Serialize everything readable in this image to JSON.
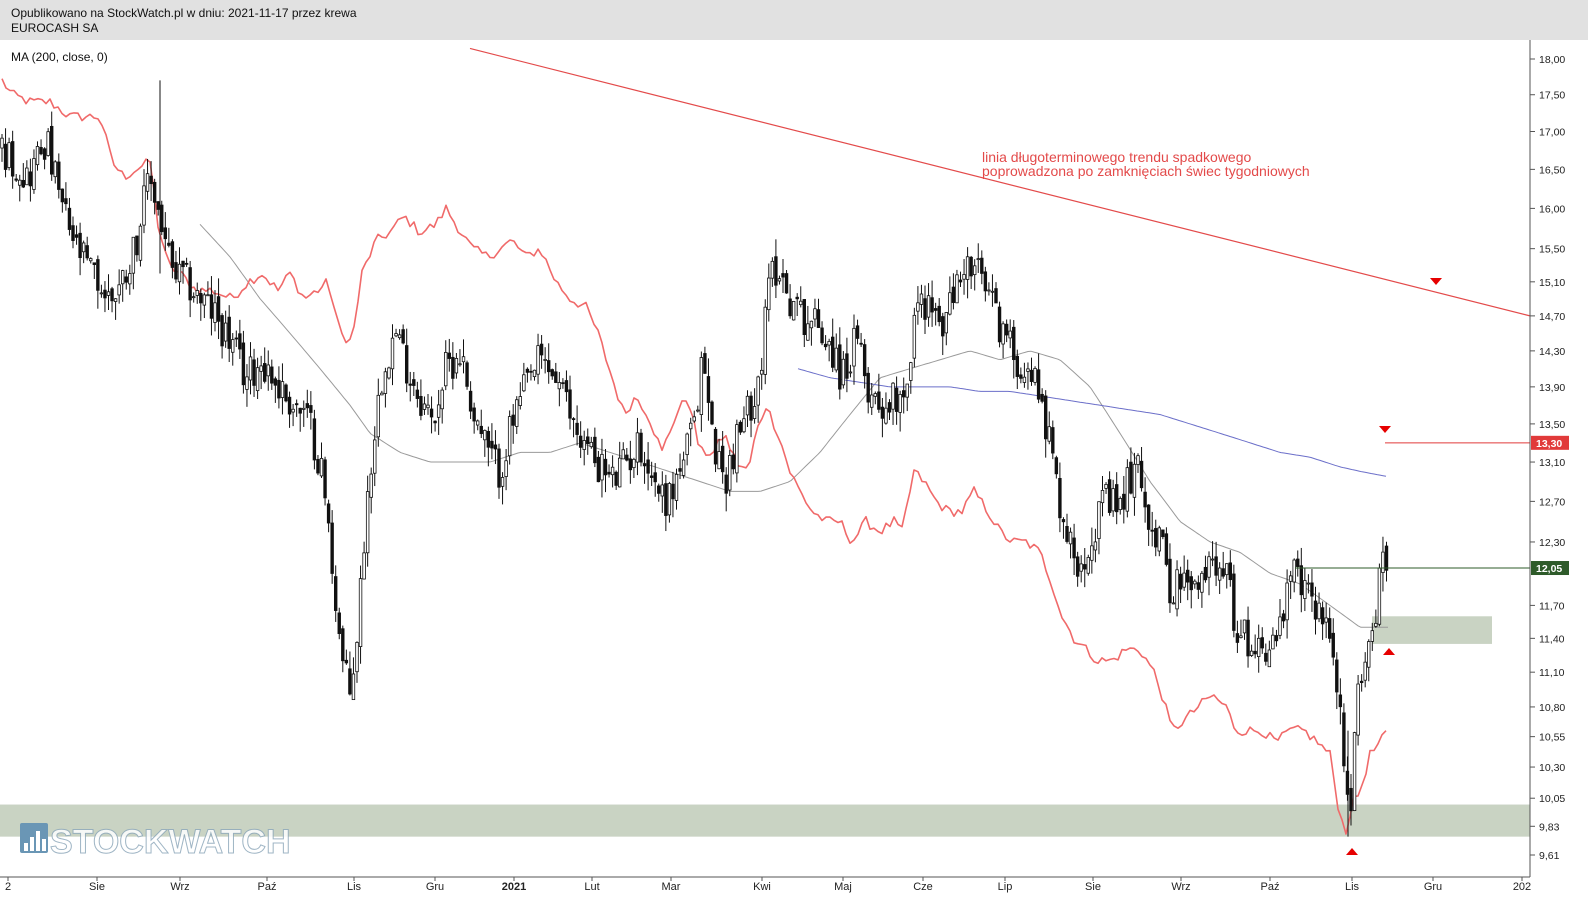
{
  "header": {
    "published": "Opublikowano na StockWatch.pl w dniu: 2021-11-17 przez krewa",
    "ticker": "EUROCASH SA"
  },
  "indicator": {
    "label": "MA (200, close, 0)"
  },
  "colors": {
    "candle": "#111111",
    "rel_line": "#f06a6a",
    "ma_gray": "#9a9a9a",
    "ma_blue": "#6b6fc9",
    "trend": "#e34a4a",
    "zone": "#c9d3c3",
    "marker": "#e60000",
    "badge_red": "#e13a3a",
    "badge_green": "#2e5b2a"
  },
  "chart_data": {
    "type": "candlestick",
    "y_scale": "log",
    "y_ticks": [
      "18,00",
      "17,50",
      "17,00",
      "16,50",
      "16,00",
      "15,50",
      "15,10",
      "14,70",
      "14,30",
      "13,90",
      "13,50",
      "13,10",
      "12,70",
      "12,30",
      "11,70",
      "11,40",
      "11,10",
      "10,80",
      "10,55",
      "10,30",
      "10,05",
      "9,83",
      "9,61"
    ],
    "x_ticks": [
      "2",
      "Sie",
      "Wrz",
      "Paź",
      "Lis",
      "Gru",
      "2021",
      "Lut",
      "Mar",
      "Kwi",
      "Maj",
      "Cze",
      "Lip",
      "Sie",
      "Wrz",
      "Paź",
      "Lis",
      "Gru",
      "202"
    ],
    "badges": [
      {
        "label": "13,30",
        "value": 13.3,
        "color": "badge_red"
      },
      {
        "label": "12,05",
        "value": 12.05,
        "color": "badge_green"
      }
    ],
    "horizontal_levels": [
      13.3,
      12.05
    ],
    "zones": [
      [
        9.75,
        10.0
      ],
      [
        11.35,
        11.6
      ]
    ],
    "annotation": {
      "line1": "linia długoterminowego trendu spadkowego",
      "line2": "poprowadzona po zamknięciach świec tygodniowych"
    },
    "price_anchors": [
      [
        0,
        16.8
      ],
      [
        14,
        16.6
      ],
      [
        28,
        16.4
      ],
      [
        46,
        16.9
      ],
      [
        60,
        16.1
      ],
      [
        76,
        15.5
      ],
      [
        92,
        15.2
      ],
      [
        108,
        14.9
      ],
      [
        122,
        15.1
      ],
      [
        136,
        15.6
      ],
      [
        150,
        16.4
      ],
      [
        160,
        15.9
      ],
      [
        172,
        15.2
      ],
      [
        186,
        15.1
      ],
      [
        200,
        14.9
      ],
      [
        216,
        14.7
      ],
      [
        230,
        14.4
      ],
      [
        246,
        14.0
      ],
      [
        262,
        14.2
      ],
      [
        278,
        13.9
      ],
      [
        294,
        13.7
      ],
      [
        310,
        13.5
      ],
      [
        322,
        13.0
      ],
      [
        332,
        12.1
      ],
      [
        342,
        11.2
      ],
      [
        350,
        10.9
      ],
      [
        358,
        11.5
      ],
      [
        366,
        12.6
      ],
      [
        374,
        13.4
      ],
      [
        384,
        14.2
      ],
      [
        396,
        14.5
      ],
      [
        408,
        14.1
      ],
      [
        420,
        13.8
      ],
      [
        432,
        13.5
      ],
      [
        446,
        14.1
      ],
      [
        460,
        14.3
      ],
      [
        474,
        13.6
      ],
      [
        488,
        13.2
      ],
      [
        500,
        13.0
      ],
      [
        512,
        13.5
      ],
      [
        526,
        13.9
      ],
      [
        540,
        14.2
      ],
      [
        556,
        14.0
      ],
      [
        570,
        13.6
      ],
      [
        584,
        13.3
      ],
      [
        598,
        13.1
      ],
      [
        612,
        12.9
      ],
      [
        626,
        13.1
      ],
      [
        640,
        13.3
      ],
      [
        654,
        12.9
      ],
      [
        668,
        12.7
      ],
      [
        682,
        13.1
      ],
      [
        696,
        13.5
      ],
      [
        702,
        14.3
      ],
      [
        712,
        13.4
      ],
      [
        724,
        12.9
      ],
      [
        736,
        13.3
      ],
      [
        750,
        13.7
      ],
      [
        762,
        14.2
      ],
      [
        770,
        15.2
      ],
      [
        778,
        15.3
      ],
      [
        790,
        14.9
      ],
      [
        804,
        14.7
      ],
      [
        818,
        14.6
      ],
      [
        830,
        14.4
      ],
      [
        842,
        14.0
      ],
      [
        856,
        14.4
      ],
      [
        868,
        13.9
      ],
      [
        882,
        13.7
      ],
      [
        896,
        13.8
      ],
      [
        908,
        14.0
      ],
      [
        916,
        14.8
      ],
      [
        928,
        14.9
      ],
      [
        940,
        14.5
      ],
      [
        952,
        14.9
      ],
      [
        964,
        15.3
      ],
      [
        978,
        15.2
      ],
      [
        990,
        14.9
      ],
      [
        1000,
        14.6
      ],
      [
        1012,
        14.3
      ],
      [
        1026,
        14.1
      ],
      [
        1040,
        13.9
      ],
      [
        1048,
        13.4
      ],
      [
        1056,
        12.9
      ],
      [
        1068,
        12.3
      ],
      [
        1080,
        12.1
      ],
      [
        1092,
        12.4
      ],
      [
        1106,
        12.7
      ],
      [
        1118,
        12.6
      ],
      [
        1132,
        13.0
      ],
      [
        1140,
        13.0
      ],
      [
        1150,
        12.5
      ],
      [
        1160,
        12.3
      ],
      [
        1170,
        11.9
      ],
      [
        1182,
        11.9
      ],
      [
        1196,
        11.8
      ],
      [
        1210,
        12.1
      ],
      [
        1222,
        12.2
      ],
      [
        1232,
        11.7
      ],
      [
        1240,
        11.4
      ],
      [
        1252,
        11.4
      ],
      [
        1266,
        11.3
      ],
      [
        1280,
        11.5
      ],
      [
        1294,
        12.0
      ],
      [
        1306,
        11.8
      ],
      [
        1320,
        11.7
      ],
      [
        1330,
        11.4
      ],
      [
        1338,
        11.0
      ],
      [
        1344,
        10.2
      ],
      [
        1350,
        9.8
      ],
      [
        1356,
        10.7
      ],
      [
        1362,
        11.2
      ],
      [
        1370,
        11.4
      ],
      [
        1376,
        11.6
      ],
      [
        1382,
        12.3
      ],
      [
        1388,
        12.05
      ]
    ],
    "rel_anchors": [
      [
        2,
        17.7
      ],
      [
        12,
        17.5
      ],
      [
        30,
        17.4
      ],
      [
        50,
        17.4
      ],
      [
        70,
        17.2
      ],
      [
        100,
        17.2
      ],
      [
        112,
        16.6
      ],
      [
        124,
        16.4
      ],
      [
        136,
        16.5
      ],
      [
        150,
        16.6
      ],
      [
        158,
        15.8
      ],
      [
        168,
        15.3
      ],
      [
        180,
        15.2
      ],
      [
        196,
        15.0
      ],
      [
        212,
        15.0
      ],
      [
        232,
        14.9
      ],
      [
        248,
        15.1
      ],
      [
        262,
        15.2
      ],
      [
        278,
        15.0
      ],
      [
        290,
        15.2
      ],
      [
        304,
        14.9
      ],
      [
        318,
        15.0
      ],
      [
        328,
        15.1
      ],
      [
        340,
        14.5
      ],
      [
        352,
        14.4
      ],
      [
        362,
        15.2
      ],
      [
        376,
        15.6
      ],
      [
        390,
        15.7
      ],
      [
        404,
        15.9
      ],
      [
        420,
        15.7
      ],
      [
        436,
        15.8
      ],
      [
        446,
        16.0
      ],
      [
        456,
        15.8
      ],
      [
        472,
        15.5
      ],
      [
        488,
        15.4
      ],
      [
        500,
        15.5
      ],
      [
        512,
        15.6
      ],
      [
        526,
        15.4
      ],
      [
        540,
        15.5
      ],
      [
        556,
        15.1
      ],
      [
        570,
        14.9
      ],
      [
        586,
        14.8
      ],
      [
        598,
        14.5
      ],
      [
        612,
        14.0
      ],
      [
        624,
        13.6
      ],
      [
        636,
        13.8
      ],
      [
        648,
        13.6
      ],
      [
        662,
        13.2
      ],
      [
        676,
        13.6
      ],
      [
        688,
        13.8
      ],
      [
        700,
        13.2
      ],
      [
        714,
        13.2
      ],
      [
        724,
        13.4
      ],
      [
        736,
        13.1
      ],
      [
        748,
        13.0
      ],
      [
        756,
        13.4
      ],
      [
        766,
        13.7
      ],
      [
        778,
        13.4
      ],
      [
        790,
        13.0
      ],
      [
        800,
        12.8
      ],
      [
        812,
        12.6
      ],
      [
        826,
        12.5
      ],
      [
        840,
        12.5
      ],
      [
        852,
        12.3
      ],
      [
        866,
        12.5
      ],
      [
        880,
        12.4
      ],
      [
        894,
        12.5
      ],
      [
        902,
        12.4
      ],
      [
        908,
        12.7
      ],
      [
        914,
        13.0
      ],
      [
        924,
        12.9
      ],
      [
        936,
        12.7
      ],
      [
        948,
        12.6
      ],
      [
        962,
        12.6
      ],
      [
        974,
        12.8
      ],
      [
        988,
        12.6
      ],
      [
        1000,
        12.4
      ],
      [
        1012,
        12.3
      ],
      [
        1026,
        12.3
      ],
      [
        1040,
        12.2
      ],
      [
        1052,
        11.9
      ],
      [
        1062,
        11.6
      ],
      [
        1074,
        11.4
      ],
      [
        1086,
        11.3
      ],
      [
        1098,
        11.2
      ],
      [
        1112,
        11.2
      ],
      [
        1126,
        11.3
      ],
      [
        1140,
        11.3
      ],
      [
        1154,
        11.1
      ],
      [
        1162,
        10.9
      ],
      [
        1172,
        10.6
      ],
      [
        1186,
        10.7
      ],
      [
        1198,
        10.8
      ],
      [
        1212,
        10.9
      ],
      [
        1226,
        10.8
      ],
      [
        1236,
        10.6
      ],
      [
        1250,
        10.6
      ],
      [
        1262,
        10.6
      ],
      [
        1276,
        10.5
      ],
      [
        1290,
        10.6
      ],
      [
        1304,
        10.6
      ],
      [
        1318,
        10.5
      ],
      [
        1330,
        10.4
      ],
      [
        1340,
        9.9
      ],
      [
        1346,
        9.8
      ],
      [
        1352,
        10.0
      ],
      [
        1360,
        10.1
      ],
      [
        1370,
        10.4
      ],
      [
        1380,
        10.5
      ],
      [
        1388,
        10.6
      ]
    ],
    "ma_gray_anchors": [
      [
        200,
        15.8
      ],
      [
        230,
        15.4
      ],
      [
        260,
        14.9
      ],
      [
        290,
        14.5
      ],
      [
        320,
        14.1
      ],
      [
        350,
        13.7
      ],
      [
        370,
        13.4
      ],
      [
        400,
        13.2
      ],
      [
        430,
        13.1
      ],
      [
        460,
        13.1
      ],
      [
        490,
        13.1
      ],
      [
        520,
        13.2
      ],
      [
        550,
        13.2
      ],
      [
        580,
        13.3
      ],
      [
        610,
        13.2
      ],
      [
        640,
        13.1
      ],
      [
        670,
        13.0
      ],
      [
        700,
        12.9
      ],
      [
        730,
        12.8
      ],
      [
        760,
        12.8
      ],
      [
        790,
        12.9
      ],
      [
        820,
        13.2
      ],
      [
        850,
        13.6
      ],
      [
        880,
        14.0
      ],
      [
        910,
        14.1
      ],
      [
        940,
        14.2
      ],
      [
        970,
        14.3
      ],
      [
        1000,
        14.2
      ],
      [
        1030,
        14.3
      ],
      [
        1060,
        14.2
      ],
      [
        1090,
        13.9
      ],
      [
        1120,
        13.4
      ],
      [
        1150,
        12.9
      ],
      [
        1180,
        12.5
      ],
      [
        1210,
        12.3
      ],
      [
        1240,
        12.2
      ],
      [
        1270,
        12.0
      ],
      [
        1300,
        11.9
      ],
      [
        1330,
        11.7
      ],
      [
        1360,
        11.5
      ],
      [
        1388,
        11.5
      ]
    ],
    "ma_blue_anchors": [
      [
        798,
        14.1
      ],
      [
        830,
        14.0
      ],
      [
        860,
        13.95
      ],
      [
        890,
        13.9
      ],
      [
        920,
        13.9
      ],
      [
        950,
        13.9
      ],
      [
        980,
        13.85
      ],
      [
        1010,
        13.85
      ],
      [
        1040,
        13.8
      ],
      [
        1070,
        13.75
      ],
      [
        1100,
        13.7
      ],
      [
        1130,
        13.65
      ],
      [
        1160,
        13.6
      ],
      [
        1190,
        13.5
      ],
      [
        1220,
        13.4
      ],
      [
        1250,
        13.3
      ],
      [
        1280,
        13.2
      ],
      [
        1310,
        13.15
      ],
      [
        1340,
        13.05
      ],
      [
        1362,
        13.0
      ],
      [
        1388,
        12.95
      ]
    ],
    "extremes": {
      "max_wick": 17.7,
      "min_wick": 9.75
    }
  },
  "watermark": "STOCKWATCH"
}
